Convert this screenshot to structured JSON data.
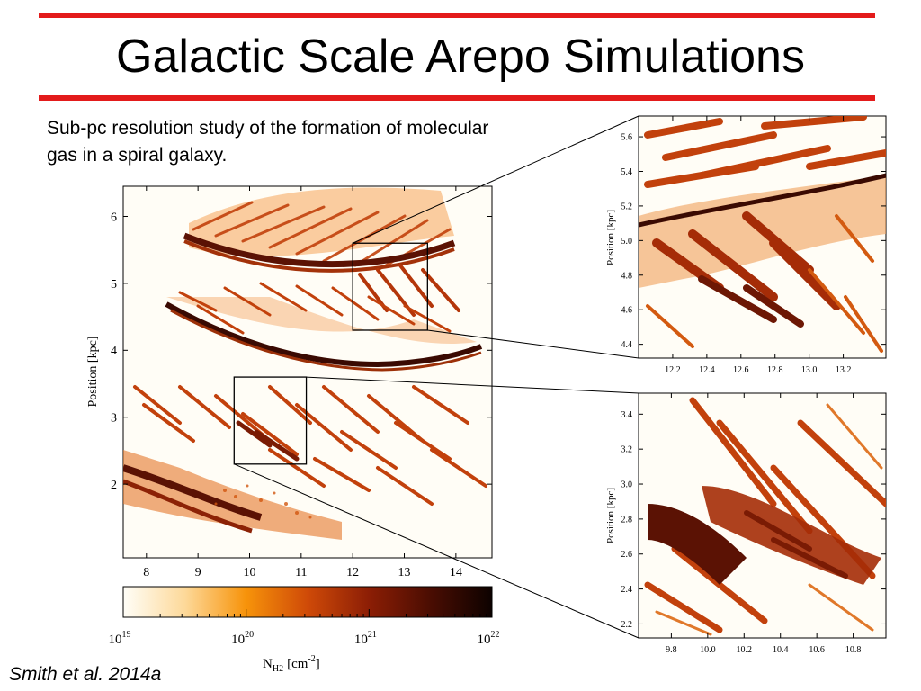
{
  "slide": {
    "title": "Galactic Scale Arepo Simulations",
    "subtitle": "Sub-pc resolution study of the formation of molecular gas in a spiral galaxy.",
    "citation": "Smith et al. 2014a",
    "accent_color": "#e31b1b"
  },
  "main_plot": {
    "ylabel": "Position [kpc]",
    "xticks": [
      "8",
      "9",
      "10",
      "11",
      "12",
      "13",
      "14"
    ],
    "yticks": [
      "6",
      "5",
      "4",
      "3",
      "2"
    ],
    "x_range": [
      7.55,
      14.7
    ],
    "y_range": [
      0.9,
      6.45
    ],
    "zoom_boxes": [
      {
        "x": [
          12.0,
          13.45
        ],
        "y": [
          4.3,
          5.6
        ]
      },
      {
        "x": [
          9.7,
          11.1
        ],
        "y": [
          2.3,
          3.6
        ]
      }
    ]
  },
  "colorbar": {
    "label_main": "N",
    "label_sub": "H2",
    "label_unit": "[cm",
    "label_exp": "-2",
    "label_end": "]",
    "ticks": [
      {
        "base": "10",
        "exp": "19"
      },
      {
        "base": "10",
        "exp": "20"
      },
      {
        "base": "10",
        "exp": "21"
      },
      {
        "base": "10",
        "exp": "22"
      }
    ],
    "colors": [
      "#fffef8",
      "#fdd99a",
      "#f7930a",
      "#cf4a08",
      "#8c1e05",
      "#4a0d02",
      "#0d0200"
    ]
  },
  "zoom_top": {
    "ylabel": "Position [kpc]",
    "xticks": [
      "12.2",
      "12.4",
      "12.6",
      "12.8",
      "13.0",
      "13.2"
    ],
    "yticks": [
      "5.6",
      "5.4",
      "5.2",
      "5.0",
      "4.8",
      "4.6",
      "4.4"
    ],
    "x_range": [
      12.0,
      13.45
    ],
    "y_range": [
      4.32,
      5.72
    ]
  },
  "zoom_bottom": {
    "ylabel": "Position [kpc]",
    "xticks": [
      "9.8",
      "10.0",
      "10.2",
      "10.4",
      "10.6",
      "10.8"
    ],
    "yticks": [
      "3.4",
      "3.2",
      "3.0",
      "2.8",
      "2.6",
      "2.4",
      "2.2"
    ],
    "x_range": [
      9.62,
      10.98
    ],
    "y_range": [
      2.12,
      3.52
    ]
  }
}
